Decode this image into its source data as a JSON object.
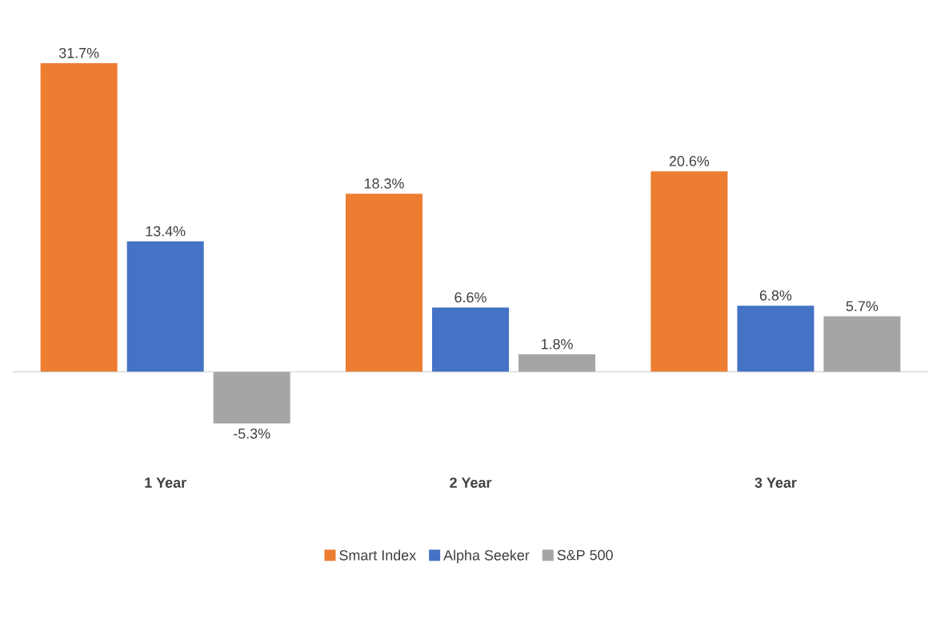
{
  "chart_data": {
    "type": "bar",
    "categories": [
      "1 Year",
      "2 Year",
      "3 Year"
    ],
    "series": [
      {
        "name": "Smart Index",
        "color": "#ed7d31",
        "values": [
          31.7,
          18.3,
          20.6
        ],
        "value_labels": [
          "31.7%",
          "18.3%",
          "20.6%"
        ]
      },
      {
        "name": "Alpha Seeker",
        "color": "#4472c4",
        "values": [
          13.4,
          6.6,
          6.8
        ],
        "value_labels": [
          "13.4%",
          "6.6%",
          "6.8%"
        ]
      },
      {
        "name": "S&P 500",
        "color": "#a5a5a5",
        "values": [
          -5.3,
          1.8,
          5.7
        ],
        "value_labels": [
          "-5.3%",
          "1.8%",
          "5.7%"
        ]
      }
    ],
    "legend": "bottom"
  }
}
